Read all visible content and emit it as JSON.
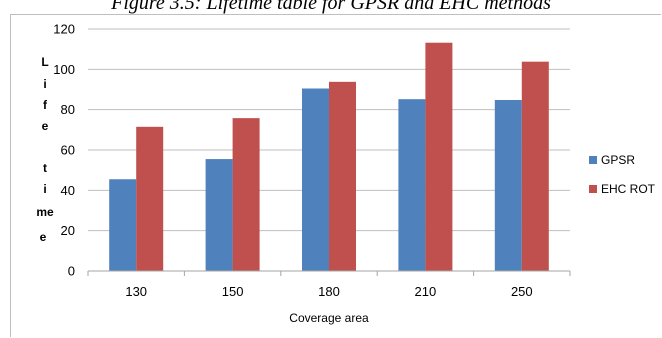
{
  "caption": "Figure 3.5: Lifetime table for GPSR and EHC methods",
  "chart_data": {
    "type": "bar",
    "title": "",
    "xlabel": "Coverage area",
    "ylabel": "Life time",
    "categories": [
      "130",
      "150",
      "180",
      "210",
      "250"
    ],
    "series": [
      {
        "name": "GPSR",
        "values": [
          45.5,
          55.5,
          90.5,
          85.2,
          84.8
        ],
        "color": "#4f81bd"
      },
      {
        "name": "EHC ROT",
        "values": [
          71.5,
          75.8,
          93.8,
          113.2,
          103.8
        ],
        "color": "#c0504d"
      }
    ],
    "ylim": [
      0,
      120
    ],
    "yticks": [
      0,
      20,
      40,
      60,
      80,
      100,
      120
    ],
    "grid": true,
    "legend_position": "right"
  }
}
